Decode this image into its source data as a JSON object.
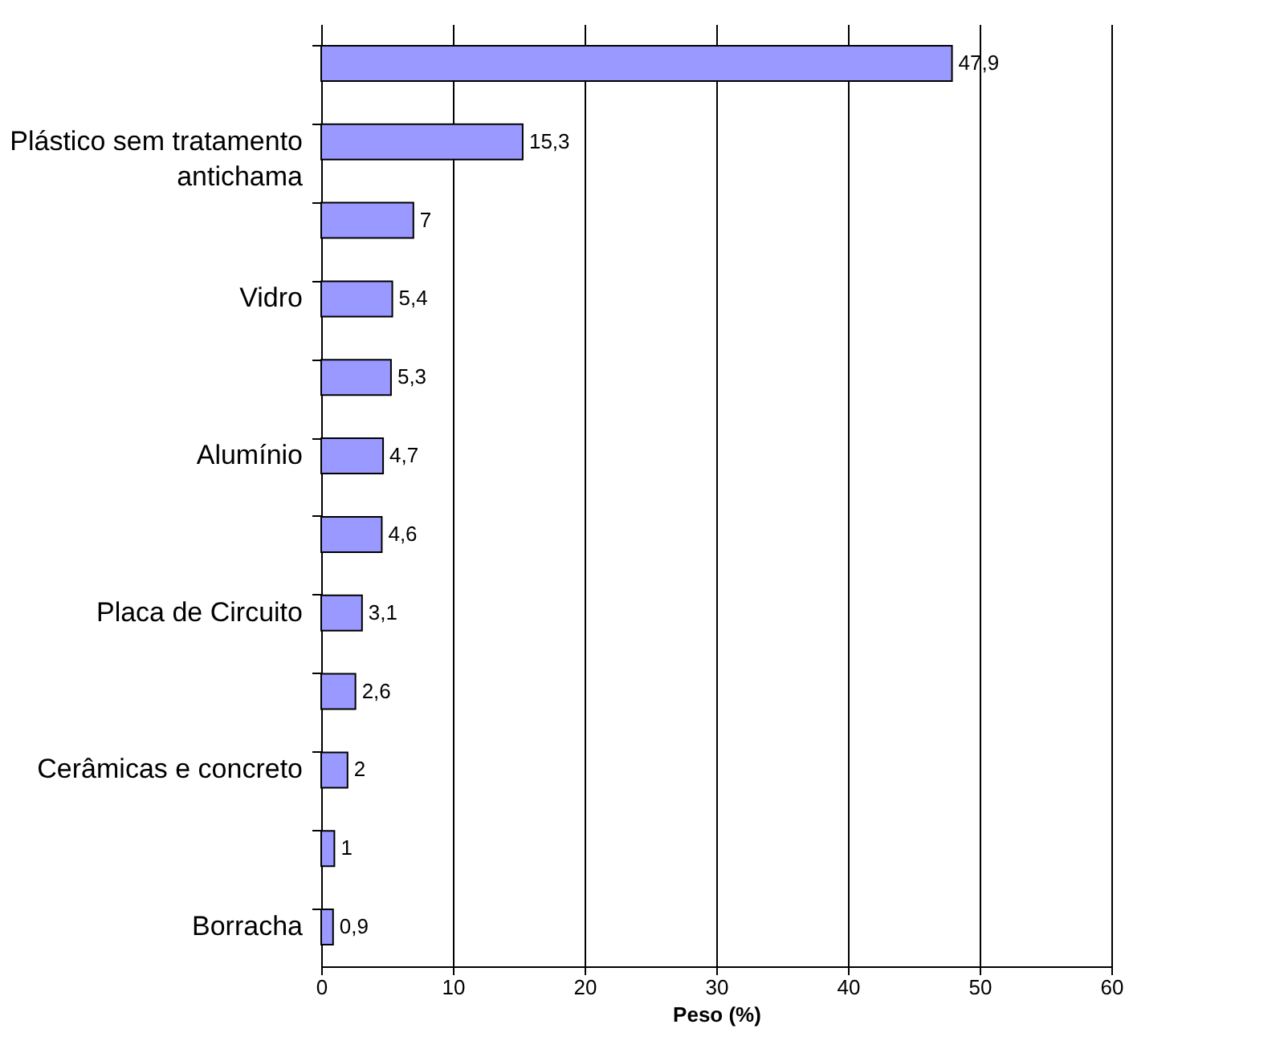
{
  "chart_data": {
    "type": "bar",
    "orientation": "horizontal",
    "categories": [
      null,
      "Plástico sem tratamento antichama",
      null,
      "Vidro",
      null,
      "Alumínio",
      null,
      "Placa de Circuito",
      null,
      "Cerâmicas e concreto",
      null,
      "Borracha"
    ],
    "values": [
      47.9,
      15.3,
      7,
      5.4,
      5.3,
      4.7,
      4.6,
      3.1,
      2.6,
      2,
      1,
      0.9
    ],
    "value_labels": [
      "47,9",
      "15,3",
      "7",
      "5,4",
      "5,3",
      "4,7",
      "4,6",
      "3,1",
      "2,6",
      "2",
      "1",
      "0,9"
    ],
    "color": "#9999ff",
    "xlim": [
      0,
      60
    ],
    "xticks": [
      0,
      10,
      20,
      30,
      40,
      50,
      60
    ],
    "xlabel": "Peso (%)",
    "grid": "x"
  }
}
